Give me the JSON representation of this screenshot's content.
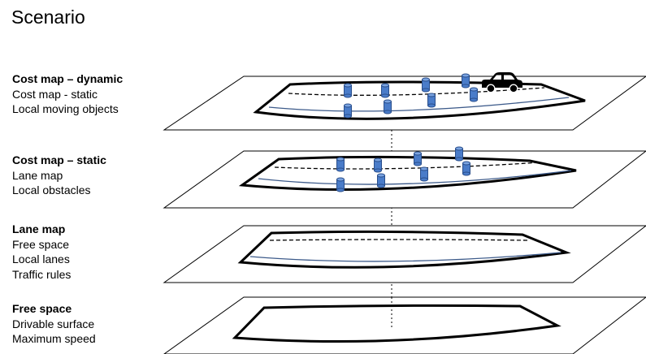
{
  "title": "Scenario",
  "layers": [
    {
      "heading": "Cost map – dynamic",
      "items": [
        "Cost map - static",
        "Local moving objects"
      ]
    },
    {
      "heading": "Cost map – static",
      "items": [
        "Lane map",
        "Local obstacles"
      ]
    },
    {
      "heading": "Lane map",
      "items": [
        "Free space",
        "Local lanes",
        "Traffic rules"
      ]
    },
    {
      "heading": "Free space",
      "items": [
        "Drivable surface",
        "Maximum speed"
      ]
    }
  ],
  "colors": {
    "obstacle_fill": "#4a7cc9",
    "obstacle_stroke": "#2a4f8c",
    "lane_line": "#3c5a8a",
    "outline": "#000000"
  },
  "icons": [
    "car-icon",
    "obstacle-cylinder-icon"
  ]
}
